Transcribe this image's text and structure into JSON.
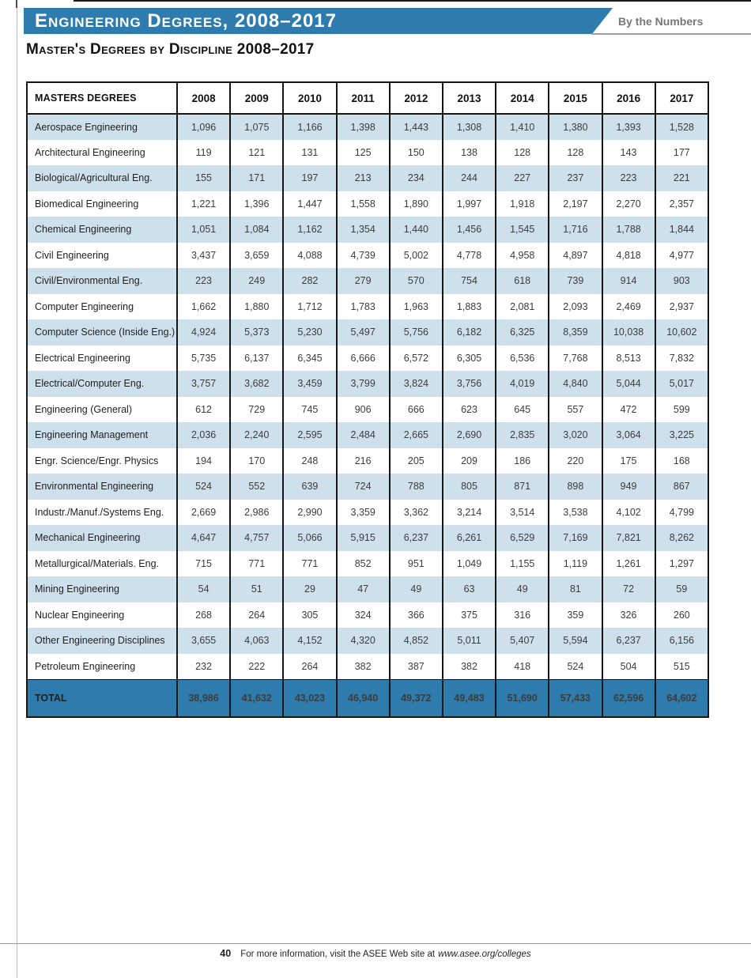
{
  "page": {
    "title_bar": {
      "title": "Engineering Degrees, 2008–2017",
      "tagline": "By the Numbers"
    },
    "section_title": "Master's Degrees by Discipline 2008–2017"
  },
  "table": {
    "label_header": "MASTERS DEGREES",
    "years": [
      "2008",
      "2009",
      "2010",
      "2011",
      "2012",
      "2013",
      "2014",
      "2015",
      "2016",
      "2017"
    ],
    "rows": [
      {
        "label": "Aerospace Engineering",
        "values": [
          "1,096",
          "1,075",
          "1,166",
          "1,398",
          "1,443",
          "1,308",
          "1,410",
          "1,380",
          "1,393",
          "1,528"
        ]
      },
      {
        "label": "Architectural Engineering",
        "values": [
          "119",
          "121",
          "131",
          "125",
          "150",
          "138",
          "128",
          "128",
          "143",
          "177"
        ]
      },
      {
        "label": "Biological/Agricultural Eng.",
        "values": [
          "155",
          "171",
          "197",
          "213",
          "234",
          "244",
          "227",
          "237",
          "223",
          "221"
        ]
      },
      {
        "label": "Biomedical Engineering",
        "values": [
          "1,221",
          "1,396",
          "1,447",
          "1,558",
          "1,890",
          "1,997",
          "1,918",
          "2,197",
          "2,270",
          "2,357"
        ]
      },
      {
        "label": "Chemical Engineering",
        "values": [
          "1,051",
          "1,084",
          "1,162",
          "1,354",
          "1,440",
          "1,456",
          "1,545",
          "1,716",
          "1,788",
          "1,844"
        ]
      },
      {
        "label": "Civil Engineering",
        "values": [
          "3,437",
          "3,659",
          "4,088",
          "4,739",
          "5,002",
          "4,778",
          "4,958",
          "4,897",
          "4,818",
          "4,977"
        ]
      },
      {
        "label": "Civil/Environmental Eng.",
        "values": [
          "223",
          "249",
          "282",
          "279",
          "570",
          "754",
          "618",
          "739",
          "914",
          "903"
        ]
      },
      {
        "label": "Computer Engineering",
        "values": [
          "1,662",
          "1,880",
          "1,712",
          "1,783",
          "1,963",
          "1,883",
          "2,081",
          "2,093",
          "2,469",
          "2,937"
        ]
      },
      {
        "label": "Computer Science (Inside Eng.)",
        "values": [
          "4,924",
          "5,373",
          "5,230",
          "5,497",
          "5,756",
          "6,182",
          "6,325",
          "8,359",
          "10,038",
          "10,602"
        ]
      },
      {
        "label": "Electrical Engineering",
        "values": [
          "5,735",
          "6,137",
          "6,345",
          "6,666",
          "6,572",
          "6,305",
          "6,536",
          "7,768",
          "8,513",
          "7,832"
        ]
      },
      {
        "label": "Electrical/Computer Eng.",
        "values": [
          "3,757",
          "3,682",
          "3,459",
          "3,799",
          "3,824",
          "3,756",
          "4,019",
          "4,840",
          "5,044",
          "5,017"
        ]
      },
      {
        "label": "Engineering (General)",
        "values": [
          "612",
          "729",
          "745",
          "906",
          "666",
          "623",
          "645",
          "557",
          "472",
          "599"
        ]
      },
      {
        "label": "Engineering Management",
        "values": [
          "2,036",
          "2,240",
          "2,595",
          "2,484",
          "2,665",
          "2,690",
          "2,835",
          "3,020",
          "3,064",
          "3,225"
        ]
      },
      {
        "label": "Engr. Science/Engr. Physics",
        "values": [
          "194",
          "170",
          "248",
          "216",
          "205",
          "209",
          "186",
          "220",
          "175",
          "168"
        ]
      },
      {
        "label": "Environmental Engineering",
        "values": [
          "524",
          "552",
          "639",
          "724",
          "788",
          "805",
          "871",
          "898",
          "949",
          "867"
        ]
      },
      {
        "label": "Industr./Manuf./Systems Eng.",
        "values": [
          "2,669",
          "2,986",
          "2,990",
          "3,359",
          "3,362",
          "3,214",
          "3,514",
          "3,538",
          "4,102",
          "4,799"
        ]
      },
      {
        "label": "Mechanical Engineering",
        "values": [
          "4,647",
          "4,757",
          "5,066",
          "5,915",
          "6,237",
          "6,261",
          "6,529",
          "7,169",
          "7,821",
          "8,262"
        ]
      },
      {
        "label": "Metallurgical/Materials. Eng.",
        "values": [
          "715",
          "771",
          "771",
          "852",
          "951",
          "1,049",
          "1,155",
          "1,119",
          "1,261",
          "1,297"
        ]
      },
      {
        "label": "Mining Engineering",
        "values": [
          "54",
          "51",
          "29",
          "47",
          "49",
          "63",
          "49",
          "81",
          "72",
          "59"
        ]
      },
      {
        "label": "Nuclear Engineering",
        "values": [
          "268",
          "264",
          "305",
          "324",
          "366",
          "375",
          "316",
          "359",
          "326",
          "260"
        ]
      },
      {
        "label": "Other Engineering Disciplines",
        "values": [
          "3,655",
          "4,063",
          "4,152",
          "4,320",
          "4,852",
          "5,011",
          "5,407",
          "5,594",
          "6,237",
          "6,156"
        ]
      },
      {
        "label": "Petroleum Engineering",
        "values": [
          "232",
          "222",
          "264",
          "382",
          "387",
          "382",
          "418",
          "524",
          "504",
          "515"
        ]
      }
    ],
    "total": {
      "label": "TOTAL",
      "values": [
        "38,986",
        "41,632",
        "43,023",
        "46,940",
        "49,372",
        "49,483",
        "51,690",
        "57,433",
        "62,596",
        "64,602"
      ]
    }
  },
  "footer": {
    "page_number": "40",
    "text": "For more information, visit the ASEE Web site at",
    "url": "www.asee.org/colleges"
  },
  "colors": {
    "bar_blue": "#2e7cae",
    "row_stripe": "#cfe0ed",
    "total_bg": "#2e7cae",
    "tagline_gray": "#77787b"
  }
}
